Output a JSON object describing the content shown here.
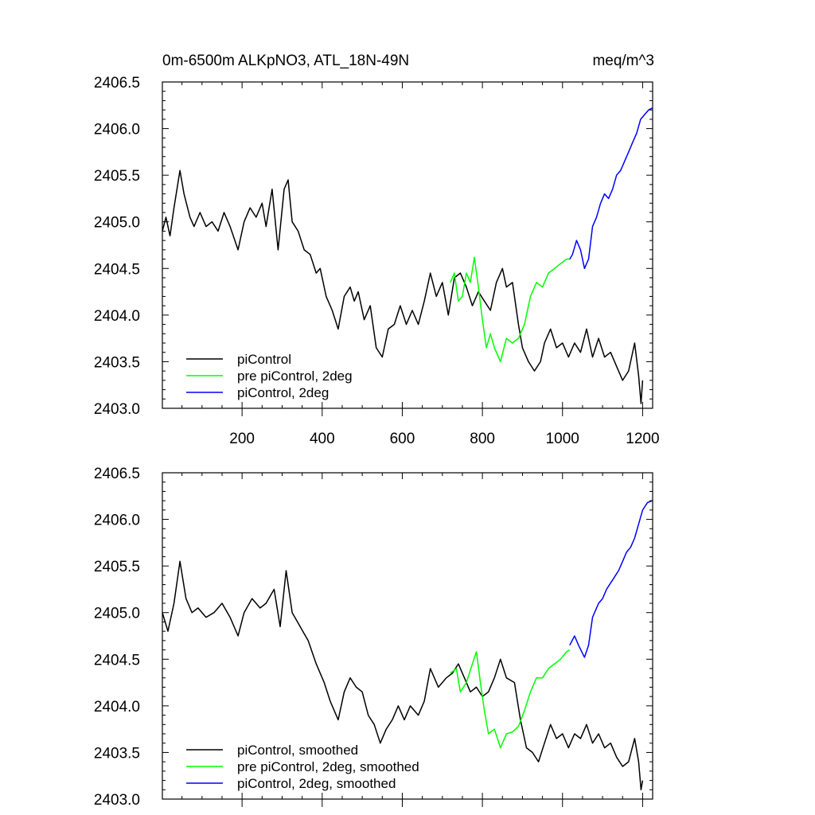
{
  "chart_data": [
    {
      "type": "line",
      "title": "0m-6500m ALKpNO3, ATL_18N-49N",
      "units": "meq/m^3",
      "xlim": [
        1,
        1225
      ],
      "ylim": [
        2403.0,
        2406.5
      ],
      "x_ticks": [
        200,
        400,
        600,
        800,
        1000,
        1200
      ],
      "x_tick_labels": [
        "200",
        "400",
        "600",
        "800",
        "1000",
        "1200"
      ],
      "y_ticks": [
        2403.0,
        2403.5,
        2404.0,
        2404.5,
        2405.0,
        2405.5,
        2406.0,
        2406.5
      ],
      "y_tick_labels": [
        "2403.0",
        "2403.5",
        "2404.0",
        "2404.5",
        "2405.0",
        "2405.5",
        "2406.0",
        "2406.5"
      ],
      "grid": false,
      "legend_position": "bottom-left",
      "series": [
        {
          "name": "piControl",
          "color": "#000000",
          "points": [
            [
              1,
              2404.9
            ],
            [
              10,
              2405.05
            ],
            [
              20,
              2404.85
            ],
            [
              30,
              2405.15
            ],
            [
              45,
              2405.55
            ],
            [
              55,
              2405.3
            ],
            [
              70,
              2405.05
            ],
            [
              80,
              2404.95
            ],
            [
              95,
              2405.1
            ],
            [
              110,
              2404.95
            ],
            [
              125,
              2405.0
            ],
            [
              140,
              2404.9
            ],
            [
              155,
              2405.1
            ],
            [
              170,
              2404.95
            ],
            [
              190,
              2404.7
            ],
            [
              205,
              2405.0
            ],
            [
              220,
              2405.15
            ],
            [
              235,
              2405.05
            ],
            [
              250,
              2405.2
            ],
            [
              260,
              2404.95
            ],
            [
              275,
              2405.35
            ],
            [
              290,
              2404.7
            ],
            [
              305,
              2405.35
            ],
            [
              315,
              2405.45
            ],
            [
              325,
              2405.0
            ],
            [
              340,
              2404.9
            ],
            [
              355,
              2404.7
            ],
            [
              370,
              2404.65
            ],
            [
              385,
              2404.45
            ],
            [
              395,
              2404.5
            ],
            [
              410,
              2404.2
            ],
            [
              425,
              2404.05
            ],
            [
              440,
              2403.85
            ],
            [
              455,
              2404.2
            ],
            [
              470,
              2404.3
            ],
            [
              480,
              2404.15
            ],
            [
              490,
              2404.25
            ],
            [
              505,
              2403.95
            ],
            [
              520,
              2404.1
            ],
            [
              535,
              2403.65
            ],
            [
              550,
              2403.55
            ],
            [
              565,
              2403.85
            ],
            [
              580,
              2403.9
            ],
            [
              595,
              2404.1
            ],
            [
              610,
              2403.9
            ],
            [
              625,
              2404.05
            ],
            [
              640,
              2403.9
            ],
            [
              655,
              2404.15
            ],
            [
              670,
              2404.45
            ],
            [
              685,
              2404.2
            ],
            [
              700,
              2404.35
            ],
            [
              715,
              2404.0
            ],
            [
              730,
              2404.4
            ],
            [
              745,
              2404.45
            ],
            [
              760,
              2404.3
            ],
            [
              775,
              2404.1
            ],
            [
              790,
              2404.25
            ],
            [
              805,
              2404.15
            ],
            [
              820,
              2404.05
            ],
            [
              835,
              2404.35
            ],
            [
              850,
              2404.5
            ],
            [
              860,
              2404.3
            ],
            [
              875,
              2404.35
            ],
            [
              890,
              2403.9
            ],
            [
              900,
              2403.65
            ],
            [
              915,
              2403.5
            ],
            [
              930,
              2403.4
            ],
            [
              945,
              2403.5
            ],
            [
              955,
              2403.7
            ],
            [
              970,
              2403.85
            ],
            [
              985,
              2403.65
            ],
            [
              1000,
              2403.7
            ],
            [
              1015,
              2403.55
            ],
            [
              1030,
              2403.7
            ],
            [
              1045,
              2403.6
            ],
            [
              1060,
              2403.85
            ],
            [
              1075,
              2403.55
            ],
            [
              1090,
              2403.75
            ],
            [
              1105,
              2403.55
            ],
            [
              1120,
              2403.6
            ],
            [
              1135,
              2403.45
            ],
            [
              1150,
              2403.3
            ],
            [
              1165,
              2403.4
            ],
            [
              1180,
              2403.7
            ],
            [
              1190,
              2403.35
            ],
            [
              1196,
              2403.05
            ],
            [
              1200,
              2403.3
            ]
          ]
        },
        {
          "name": "pre piControl, 2deg",
          "color": "#00ff00",
          "points": [
            [
              720,
              2404.35
            ],
            [
              730,
              2404.45
            ],
            [
              740,
              2404.15
            ],
            [
              750,
              2404.2
            ],
            [
              760,
              2404.45
            ],
            [
              770,
              2404.35
            ],
            [
              780,
              2404.62
            ],
            [
              790,
              2404.3
            ],
            [
              800,
              2403.95
            ],
            [
              810,
              2403.65
            ],
            [
              820,
              2403.8
            ],
            [
              830,
              2403.65
            ],
            [
              845,
              2403.5
            ],
            [
              860,
              2403.75
            ],
            [
              875,
              2403.7
            ],
            [
              890,
              2403.75
            ],
            [
              905,
              2403.9
            ],
            [
              920,
              2404.2
            ],
            [
              935,
              2404.35
            ],
            [
              950,
              2404.3
            ],
            [
              965,
              2404.45
            ],
            [
              980,
              2404.5
            ],
            [
              995,
              2404.55
            ],
            [
              1010,
              2404.6
            ],
            [
              1018,
              2404.6
            ]
          ]
        },
        {
          "name": "piControl, 2deg",
          "color": "#0000ff",
          "points": [
            [
              1018,
              2404.6
            ],
            [
              1025,
              2404.65
            ],
            [
              1035,
              2404.8
            ],
            [
              1045,
              2404.7
            ],
            [
              1055,
              2404.5
            ],
            [
              1065,
              2404.6
            ],
            [
              1075,
              2404.95
            ],
            [
              1085,
              2405.05
            ],
            [
              1095,
              2405.2
            ],
            [
              1105,
              2405.3
            ],
            [
              1115,
              2405.25
            ],
            [
              1125,
              2405.35
            ],
            [
              1135,
              2405.5
            ],
            [
              1145,
              2405.55
            ],
            [
              1155,
              2405.65
            ],
            [
              1165,
              2405.75
            ],
            [
              1175,
              2405.85
            ],
            [
              1185,
              2405.95
            ],
            [
              1195,
              2406.1
            ],
            [
              1205,
              2406.15
            ],
            [
              1215,
              2406.2
            ],
            [
              1224,
              2406.22
            ]
          ]
        }
      ]
    },
    {
      "type": "line",
      "xlim": [
        1,
        1225
      ],
      "ylim": [
        2403.0,
        2406.5
      ],
      "x_ticks": [
        200,
        400,
        600,
        800,
        1000,
        1200
      ],
      "y_ticks": [
        2403.0,
        2403.5,
        2404.0,
        2404.5,
        2405.0,
        2405.5,
        2406.0,
        2406.5
      ],
      "y_tick_labels": [
        "2403.0",
        "2403.5",
        "2404.0",
        "2404.5",
        "2405.0",
        "2405.5",
        "2406.0",
        "2406.5"
      ],
      "grid": false,
      "legend_position": "bottom-left",
      "series": [
        {
          "name": "piControl, smoothed",
          "color": "#000000",
          "points": [
            [
              1,
              2405.0
            ],
            [
              15,
              2404.8
            ],
            [
              30,
              2405.1
            ],
            [
              45,
              2405.55
            ],
            [
              60,
              2405.15
            ],
            [
              75,
              2405.0
            ],
            [
              90,
              2405.05
            ],
            [
              110,
              2404.95
            ],
            [
              130,
              2405.0
            ],
            [
              150,
              2405.1
            ],
            [
              170,
              2404.95
            ],
            [
              190,
              2404.75
            ],
            [
              205,
              2405.0
            ],
            [
              225,
              2405.15
            ],
            [
              245,
              2405.05
            ],
            [
              260,
              2405.1
            ],
            [
              280,
              2405.25
            ],
            [
              295,
              2404.85
            ],
            [
              310,
              2405.45
            ],
            [
              325,
              2405.0
            ],
            [
              345,
              2404.85
            ],
            [
              365,
              2404.7
            ],
            [
              385,
              2404.45
            ],
            [
              405,
              2404.25
            ],
            [
              420,
              2404.05
            ],
            [
              440,
              2403.85
            ],
            [
              455,
              2404.15
            ],
            [
              470,
              2404.3
            ],
            [
              485,
              2404.2
            ],
            [
              500,
              2404.15
            ],
            [
              515,
              2403.9
            ],
            [
              530,
              2403.8
            ],
            [
              545,
              2403.6
            ],
            [
              560,
              2403.75
            ],
            [
              575,
              2403.85
            ],
            [
              590,
              2404.0
            ],
            [
              605,
              2403.85
            ],
            [
              620,
              2404.0
            ],
            [
              640,
              2403.9
            ],
            [
              655,
              2404.05
            ],
            [
              670,
              2404.4
            ],
            [
              690,
              2404.2
            ],
            [
              710,
              2404.3
            ],
            [
              725,
              2404.35
            ],
            [
              740,
              2404.45
            ],
            [
              755,
              2404.3
            ],
            [
              770,
              2404.15
            ],
            [
              785,
              2404.2
            ],
            [
              800,
              2404.1
            ],
            [
              815,
              2404.15
            ],
            [
              830,
              2404.3
            ],
            [
              845,
              2404.5
            ],
            [
              860,
              2404.3
            ],
            [
              880,
              2404.25
            ],
            [
              895,
              2403.85
            ],
            [
              910,
              2403.55
            ],
            [
              925,
              2403.5
            ],
            [
              940,
              2403.4
            ],
            [
              955,
              2403.6
            ],
            [
              970,
              2403.8
            ],
            [
              985,
              2403.65
            ],
            [
              1000,
              2403.7
            ],
            [
              1015,
              2403.55
            ],
            [
              1030,
              2403.7
            ],
            [
              1045,
              2403.65
            ],
            [
              1060,
              2403.8
            ],
            [
              1075,
              2403.6
            ],
            [
              1090,
              2403.7
            ],
            [
              1105,
              2403.55
            ],
            [
              1120,
              2403.6
            ],
            [
              1135,
              2403.45
            ],
            [
              1150,
              2403.35
            ],
            [
              1165,
              2403.4
            ],
            [
              1180,
              2403.65
            ],
            [
              1190,
              2403.4
            ],
            [
              1196,
              2403.1
            ],
            [
              1200,
              2403.2
            ]
          ]
        },
        {
          "name": "pre piControl, 2deg, smoothed",
          "color": "#00ff00",
          "points": [
            [
              720,
              2404.35
            ],
            [
              735,
              2404.4
            ],
            [
              745,
              2404.15
            ],
            [
              760,
              2404.25
            ],
            [
              775,
              2404.45
            ],
            [
              785,
              2404.58
            ],
            [
              795,
              2404.25
            ],
            [
              805,
              2403.95
            ],
            [
              815,
              2403.7
            ],
            [
              830,
              2403.75
            ],
            [
              845,
              2403.55
            ],
            [
              860,
              2403.7
            ],
            [
              875,
              2403.72
            ],
            [
              890,
              2403.78
            ],
            [
              905,
              2403.95
            ],
            [
              920,
              2404.15
            ],
            [
              935,
              2404.3
            ],
            [
              950,
              2404.3
            ],
            [
              965,
              2404.4
            ],
            [
              980,
              2404.45
            ],
            [
              995,
              2404.5
            ],
            [
              1010,
              2404.58
            ],
            [
              1018,
              2404.6
            ]
          ]
        },
        {
          "name": "piControl, 2deg, smoothed",
          "color": "#0000ff",
          "points": [
            [
              1018,
              2404.65
            ],
            [
              1030,
              2404.75
            ],
            [
              1040,
              2404.65
            ],
            [
              1055,
              2404.52
            ],
            [
              1065,
              2404.65
            ],
            [
              1075,
              2404.95
            ],
            [
              1090,
              2405.1
            ],
            [
              1100,
              2405.15
            ],
            [
              1110,
              2405.25
            ],
            [
              1125,
              2405.35
            ],
            [
              1140,
              2405.45
            ],
            [
              1150,
              2405.55
            ],
            [
              1160,
              2405.65
            ],
            [
              1170,
              2405.7
            ],
            [
              1180,
              2405.8
            ],
            [
              1190,
              2405.95
            ],
            [
              1200,
              2406.1
            ],
            [
              1212,
              2406.18
            ],
            [
              1224,
              2406.2
            ]
          ]
        }
      ]
    }
  ]
}
